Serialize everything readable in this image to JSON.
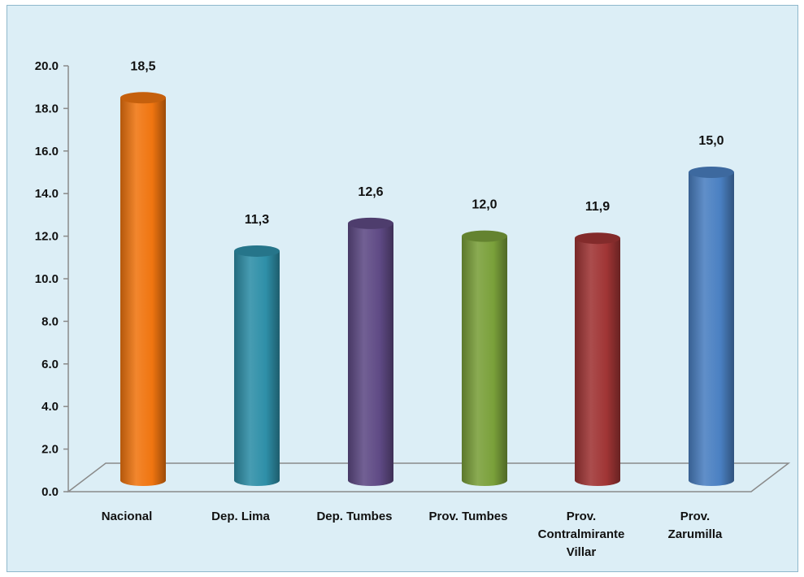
{
  "chart_data": {
    "type": "bar",
    "categories": [
      [
        "Nacional"
      ],
      [
        "Dep. Lima"
      ],
      [
        "Dep. Tumbes"
      ],
      [
        "Prov. Tumbes"
      ],
      [
        "Prov.",
        "Contralmirante",
        "Villar"
      ],
      [
        "Prov.",
        "Zarumilla"
      ]
    ],
    "values": [
      18.5,
      11.3,
      12.6,
      12.0,
      11.9,
      15.0
    ],
    "data_labels": [
      "18,5",
      "11,3",
      "12,6",
      "12,0",
      "11,9",
      "15,0"
    ],
    "colors": [
      "#f07510",
      "#2e8fa8",
      "#5f4a85",
      "#7aa03a",
      "#a03535",
      "#4a80c2"
    ],
    "ylim": [
      0,
      20
    ],
    "yticks": [
      "0.0",
      "2.0",
      "4.0",
      "6.0",
      "8.0",
      "10.0",
      "12.0",
      "14.0",
      "16.0",
      "18.0",
      "20.0"
    ],
    "title": "",
    "xlabel": "",
    "ylabel": ""
  }
}
